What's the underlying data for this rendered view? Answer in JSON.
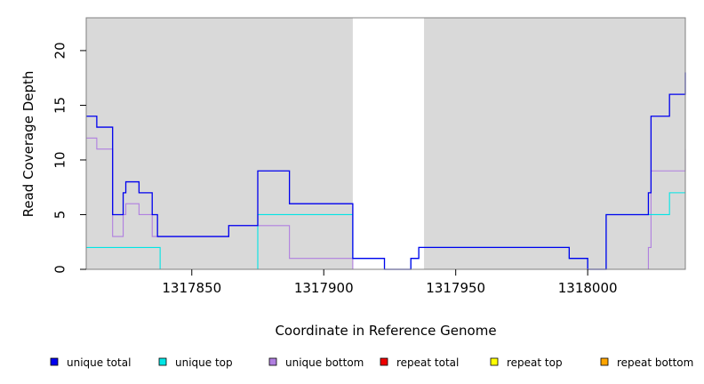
{
  "chart_data": {
    "type": "line",
    "title": "",
    "xlabel": "Coordinate in Reference Genome",
    "ylabel": "Read Coverage Depth",
    "xlim": [
      1317810,
      1318037
    ],
    "ylim": [
      0,
      23
    ],
    "x_ticks": [
      1317850,
      1317900,
      1317950,
      1318000
    ],
    "x_tick_labels": [
      "1317850",
      "1317900",
      "1317950",
      "1318000"
    ],
    "y_ticks": [
      0,
      5,
      10,
      15,
      20
    ],
    "y_tick_labels": [
      "0",
      "5",
      "10",
      "15",
      "20"
    ],
    "shaded_regions": [
      [
        1317810,
        1317911
      ],
      [
        1317938,
        1318037
      ]
    ],
    "legend_position": "bottom",
    "series": [
      {
        "name": "unique total",
        "color": "#0000ee",
        "x": [
          1317810,
          1317814,
          1317820,
          1317824,
          1317825,
          1317830,
          1317835,
          1317837,
          1317864,
          1317875,
          1317887,
          1317911,
          1317923,
          1317933,
          1317936,
          1317993,
          1318000,
          1318007,
          1318023,
          1318024,
          1318031,
          1318037
        ],
        "y": [
          14,
          13,
          5,
          7,
          8,
          7,
          5,
          3,
          4,
          9,
          6,
          1,
          0,
          1,
          2,
          1,
          0,
          5,
          7,
          14,
          16,
          18
        ]
      },
      {
        "name": "unique top",
        "color": "#00e5e5",
        "x": [
          1317810,
          1317838,
          1317875,
          1317911,
          1317923,
          1317933,
          1317936,
          1317993,
          1318000,
          1318007,
          1318024,
          1318031,
          1318037
        ],
        "y": [
          2,
          0,
          5,
          1,
          0,
          1,
          2,
          1,
          0,
          5,
          5,
          7,
          7
        ]
      },
      {
        "name": "unique bottom",
        "color": "#b07fe0",
        "x": [
          1317810,
          1317814,
          1317820,
          1317824,
          1317825,
          1317830,
          1317835,
          1317837,
          1317864,
          1317875,
          1317887,
          1317911,
          1318022,
          1318023,
          1318024,
          1318037
        ],
        "y": [
          12,
          11,
          3,
          5,
          6,
          5,
          3,
          3,
          4,
          4,
          1,
          0,
          0,
          2,
          9,
          11
        ]
      },
      {
        "name": "repeat total",
        "color": "#ee0000",
        "x": [
          1317810,
          1318037
        ],
        "y": [
          0,
          0
        ]
      },
      {
        "name": "repeat top",
        "color": "#ffff00",
        "x": [
          1317810,
          1318037
        ],
        "y": [
          0,
          0
        ]
      },
      {
        "name": "repeat bottom",
        "color": "#ffa500",
        "x": [
          1317810,
          1318037
        ],
        "y": [
          0,
          0
        ]
      }
    ]
  }
}
